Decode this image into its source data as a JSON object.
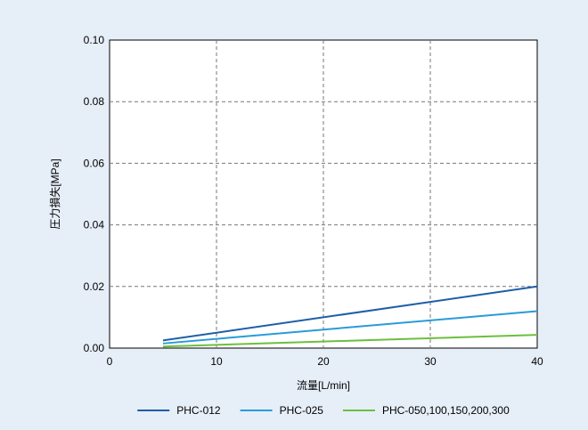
{
  "chart_data": {
    "type": "line",
    "title": "",
    "xlabel": "流量[L/min]",
    "ylabel": "圧力損失[MPa]",
    "xlim": [
      0,
      40
    ],
    "ylim": [
      0,
      0.1
    ],
    "x_ticks": [
      0,
      10,
      20,
      30,
      40
    ],
    "y_ticks": [
      0.0,
      0.02,
      0.04,
      0.06,
      0.08,
      0.1
    ],
    "x_tick_labels": [
      "0",
      "10",
      "20",
      "30",
      "40"
    ],
    "y_tick_labels": [
      "0.00",
      "0.02",
      "0.04",
      "0.06",
      "0.08",
      "0.10"
    ],
    "grid": true,
    "legend_position": "bottom",
    "series": [
      {
        "name": "PHC-012",
        "color": "#1f5ea8",
        "points": [
          [
            5,
            0.0025
          ],
          [
            40,
            0.02
          ]
        ]
      },
      {
        "name": "PHC-025",
        "color": "#2a9bd8",
        "points": [
          [
            5,
            0.0015
          ],
          [
            40,
            0.012
          ]
        ]
      },
      {
        "name": "PHC-050,100,150,200,300",
        "color": "#6cbf3f",
        "points": [
          [
            5,
            0.0005
          ],
          [
            40,
            0.0043
          ]
        ]
      }
    ]
  },
  "colors": {
    "background": "#e6eef8",
    "plot_background": "#ffffff"
  }
}
